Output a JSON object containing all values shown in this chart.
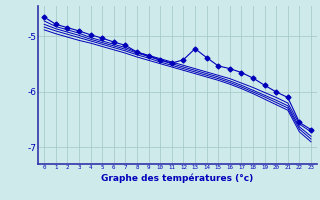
{
  "xlabel": "Graphe des températures (°c)",
  "background_color": "#ceeaea",
  "grid_color": "#aacccc",
  "line_color": "#0000bb",
  "x_values": [
    0,
    1,
    2,
    3,
    4,
    5,
    6,
    7,
    8,
    9,
    10,
    11,
    12,
    13,
    14,
    15,
    16,
    17,
    18,
    19,
    20,
    21,
    22,
    23
  ],
  "line1": [
    -4.72,
    -4.82,
    -4.88,
    -4.94,
    -5.02,
    -5.08,
    -5.14,
    -5.2,
    -5.28,
    -5.34,
    -5.4,
    -5.46,
    -5.52,
    -5.58,
    -5.64,
    -5.7,
    -5.76,
    -5.84,
    -5.92,
    -6.01,
    -6.1,
    -6.2,
    -6.58,
    -6.72
  ],
  "line2": [
    -4.78,
    -4.86,
    -4.92,
    -4.98,
    -5.05,
    -5.11,
    -5.17,
    -5.23,
    -5.3,
    -5.36,
    -5.43,
    -5.49,
    -5.55,
    -5.61,
    -5.67,
    -5.73,
    -5.8,
    -5.88,
    -5.97,
    -6.06,
    -6.15,
    -6.25,
    -6.63,
    -6.8
  ],
  "line3": [
    -4.83,
    -4.9,
    -4.96,
    -5.02,
    -5.08,
    -5.14,
    -5.2,
    -5.26,
    -5.33,
    -5.39,
    -5.46,
    -5.52,
    -5.58,
    -5.64,
    -5.7,
    -5.76,
    -5.83,
    -5.91,
    -6.0,
    -6.09,
    -6.19,
    -6.29,
    -6.67,
    -6.85
  ],
  "line4": [
    -4.88,
    -4.95,
    -5.01,
    -5.07,
    -5.12,
    -5.18,
    -5.24,
    -5.3,
    -5.37,
    -5.43,
    -5.49,
    -5.55,
    -5.61,
    -5.67,
    -5.73,
    -5.79,
    -5.86,
    -5.94,
    -6.03,
    -6.13,
    -6.23,
    -6.33,
    -6.72,
    -6.9
  ],
  "line_marker": [
    -4.65,
    -4.78,
    -4.84,
    -4.9,
    -4.97,
    -5.03,
    -5.1,
    -5.16,
    -5.28,
    -5.35,
    -5.42,
    -5.48,
    -5.42,
    -5.22,
    -5.38,
    -5.53,
    -5.58,
    -5.65,
    -5.75,
    -5.88,
    -6.0,
    -6.1,
    -6.55,
    -6.68
  ],
  "ylim": [
    -7.3,
    -4.45
  ],
  "yticks": [
    -7,
    -6,
    -5
  ],
  "xlim": [
    -0.5,
    23.5
  ],
  "figsize": [
    3.2,
    2.0
  ],
  "dpi": 100
}
